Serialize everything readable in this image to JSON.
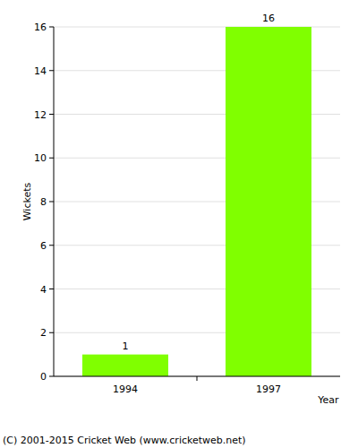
{
  "chart_data": {
    "type": "bar",
    "categories": [
      "1994",
      "1997"
    ],
    "values": [
      1,
      16
    ],
    "color": "#80ff00",
    "ylim": [
      0,
      16
    ],
    "yticks": [
      0,
      2,
      4,
      6,
      8,
      10,
      12,
      14,
      16
    ],
    "grid": true,
    "data_labels": true,
    "x_label": "Year",
    "y_label": "Wickets",
    "annotations": [
      "(C) 2001-2015 Cricket Web (www.cricketweb.net)"
    ]
  }
}
